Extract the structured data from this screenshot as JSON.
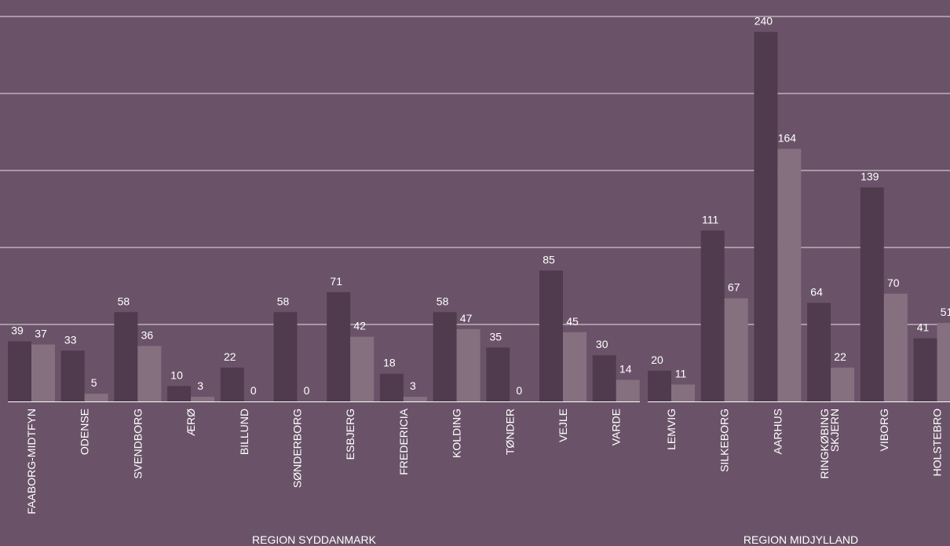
{
  "chart_data": [
    {
      "type": "bar",
      "xlabel": "REGION SYDDANMARK",
      "categories": [
        "FAABORG-MIDTFYN",
        "ODENSE",
        "SVENDBORG",
        "ÆRØ",
        "BILLUND",
        "SØNDERBORG",
        "ESBJERG",
        "FREDERICIA",
        "KOLDING",
        "TØNDER",
        "VEJLE",
        "VARDE"
      ],
      "series": [
        {
          "color": "#4f3b4d",
          "values": [
            39,
            33,
            58,
            10,
            22,
            58,
            71,
            18,
            58,
            35,
            85,
            30
          ]
        },
        {
          "color": "#84707f",
          "values": [
            37,
            5,
            36,
            3,
            0,
            0,
            42,
            3,
            47,
            0,
            45,
            14
          ]
        }
      ],
      "ylim": [
        0,
        250
      ],
      "yticks": [
        50,
        100,
        150,
        200,
        250
      ],
      "grid": true
    },
    {
      "type": "bar",
      "xlabel": "REGION MIDJYLLAND",
      "categories": [
        "LEMVIG",
        "SILKEBORG",
        "AARHUS",
        "RINGKØBING SKJERN",
        "VIBORG",
        "HOLSTEBRO"
      ],
      "series": [
        {
          "color": "#4f3b4d",
          "values": [
            20,
            111,
            240,
            64,
            139,
            41
          ]
        },
        {
          "color": "#84707f",
          "values": [
            11,
            67,
            164,
            22,
            70,
            51
          ]
        }
      ],
      "ylim": [
        0,
        250
      ],
      "yticks": [
        50,
        100,
        150,
        200,
        250
      ],
      "grid": true
    }
  ]
}
